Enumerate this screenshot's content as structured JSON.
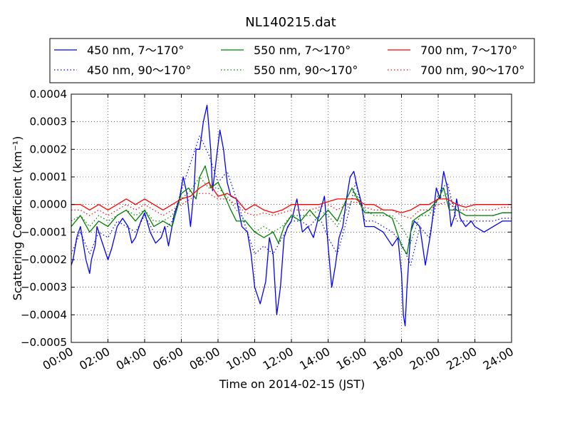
{
  "chart_data": {
    "type": "line",
    "title": "NL140215.dat",
    "xlabel": "Time on 2014-02-15 (JST)",
    "ylabel": "Scattering Coefficient (km⁻¹)",
    "xlim": [
      0,
      24
    ],
    "ylim": [
      -0.0005,
      0.0004
    ],
    "x_tick_labels": [
      "00:00",
      "02:00",
      "04:00",
      "06:00",
      "08:00",
      "10:00",
      "12:00",
      "14:00",
      "16:00",
      "18:00",
      "20:00",
      "22:00",
      "24:00"
    ],
    "y_tick_labels": [
      "−0.0005",
      "−0.0004",
      "−0.0003",
      "−0.0002",
      "−0.0001",
      "0.0000",
      "0.0001",
      "0.0002",
      "0.0003",
      "0.0004"
    ],
    "grid": true,
    "legend": "top, 3 columns",
    "x_unit": "hours",
    "series": [
      {
        "name": "450 nm, 7～170°",
        "color": "#0000ff",
        "style": "solid",
        "x": [
          0,
          0.1,
          0.3,
          0.5,
          0.6,
          0.8,
          1.0,
          1.1,
          1.3,
          1.4,
          1.6,
          1.8,
          2.0,
          2.2,
          2.5,
          2.8,
          3.1,
          3.3,
          3.5,
          3.8,
          4.0,
          4.3,
          4.6,
          4.9,
          5.1,
          5.3,
          5.6,
          5.9,
          6.1,
          6.3,
          6.5,
          6.7,
          6.8,
          7.0,
          7.2,
          7.4,
          7.6,
          7.7,
          7.9,
          8.1,
          8.3,
          8.5,
          8.7,
          9.0,
          9.3,
          9.6,
          9.8,
          10.0,
          10.3,
          10.6,
          10.8,
          11.0,
          11.2,
          11.4,
          11.6,
          11.8,
          12.0,
          12.3,
          12.6,
          12.9,
          13.2,
          13.5,
          13.8,
          14.0,
          14.2,
          14.4,
          14.6,
          14.8,
          15.0,
          15.2,
          15.4,
          15.6,
          15.8,
          16.0,
          16.5,
          17.0,
          17.5,
          17.8,
          18.0,
          18.1,
          18.2,
          18.3,
          18.5,
          18.7,
          19.0,
          19.3,
          19.6,
          19.9,
          20.1,
          20.3,
          20.5,
          20.7,
          20.9,
          21.0,
          21.2,
          21.5,
          21.8,
          22.0,
          22.5,
          23.0,
          23.5,
          24.0
        ],
        "y": [
          -0.00022,
          -0.0002,
          -0.00012,
          -8e-05,
          -0.00012,
          -0.0002,
          -0.00025,
          -0.0002,
          -0.00015,
          -8e-05,
          -0.00012,
          -0.00016,
          -0.0002,
          -0.00016,
          -8e-05,
          -5e-05,
          -8e-05,
          -0.00014,
          -0.00012,
          -6e-05,
          -3e-05,
          -0.0001,
          -0.00014,
          -0.00012,
          -8e-05,
          -0.00015,
          -4e-05,
          2e-05,
          0.0001,
          4e-05,
          -8e-05,
          6e-05,
          0.0002,
          0.0002,
          0.0003,
          0.00036,
          0.0002,
          5e-05,
          0.00016,
          0.00027,
          0.0002,
          8e-05,
          3e-05,
          2e-05,
          -8e-05,
          -0.0001,
          -0.00018,
          -0.0003,
          -0.00036,
          -0.00028,
          -0.00012,
          -0.00018,
          -0.0004,
          -0.0003,
          -0.00012,
          -8e-05,
          -6e-05,
          2e-05,
          -0.0001,
          -8e-05,
          -0.00012,
          -4e-05,
          3e-05,
          -0.00015,
          -0.0003,
          -0.00022,
          -0.00012,
          -8e-05,
          2e-05,
          0.0001,
          0.00012,
          6e-05,
          1e-05,
          -8e-05,
          -8e-05,
          -0.0001,
          -0.00015,
          -0.00012,
          -0.00025,
          -0.0004,
          -0.00044,
          -0.0003,
          -0.0001,
          -6e-05,
          -8e-05,
          -0.00022,
          -0.0001,
          6e-05,
          2e-05,
          0.00012,
          6e-05,
          -8e-05,
          -4e-05,
          2e-05,
          -5e-05,
          -8e-05,
          -6e-05,
          -8e-05,
          -0.0001,
          -8e-05,
          -6e-05,
          -6e-05
        ]
      },
      {
        "name": "550 nm, 7～170°",
        "color": "#008000",
        "style": "solid",
        "x": [
          0,
          0.5,
          1.0,
          1.5,
          2.0,
          2.5,
          3.0,
          3.5,
          4.0,
          4.5,
          5.0,
          5.5,
          6.0,
          6.4,
          6.8,
          7.0,
          7.3,
          7.6,
          8.0,
          8.3,
          8.7,
          9.0,
          9.5,
          10.0,
          10.5,
          11.0,
          11.3,
          11.6,
          12.0,
          12.5,
          13.0,
          13.5,
          14.0,
          14.5,
          15.0,
          15.3,
          15.6,
          16.0,
          16.5,
          17.0,
          17.5,
          18.0,
          18.3,
          18.6,
          19.0,
          19.5,
          20.0,
          20.3,
          20.6,
          21.0,
          21.5,
          22.0,
          22.5,
          23.0,
          23.5,
          24.0
        ],
        "y": [
          -8e-05,
          -4e-05,
          -0.0001,
          -6e-05,
          -8e-05,
          -4e-05,
          -2e-05,
          -6e-05,
          -2e-05,
          -8e-05,
          -6e-05,
          -8e-05,
          4e-05,
          6e-05,
          2e-05,
          0.0001,
          0.00014,
          6e-05,
          8e-05,
          4e-05,
          -2e-05,
          -6e-05,
          -6e-05,
          -0.0001,
          -0.00012,
          -0.0001,
          -0.00014,
          -8e-05,
          -4e-05,
          -6e-05,
          -2e-05,
          -6e-05,
          -2e-05,
          -6e-05,
          2e-05,
          6e-05,
          2e-05,
          -3e-05,
          -3e-05,
          -3e-05,
          -5e-05,
          -0.00015,
          -0.00018,
          -6e-05,
          -4e-05,
          -2e-05,
          2e-05,
          6e-05,
          -2e-05,
          -2e-05,
          -4e-05,
          -4e-05,
          -4e-05,
          -4e-05,
          -3e-05,
          -3e-05
        ]
      },
      {
        "name": "700 nm, 7～170°",
        "color": "#ff0000",
        "style": "solid",
        "x": [
          0,
          0.5,
          1.0,
          1.5,
          2.0,
          2.5,
          3.0,
          3.5,
          4.0,
          4.5,
          5.0,
          5.5,
          6.0,
          6.5,
          7.0,
          7.5,
          8.0,
          8.5,
          9.0,
          9.5,
          10.0,
          10.5,
          11.0,
          11.5,
          12.0,
          12.5,
          13.0,
          13.5,
          14.0,
          14.5,
          15.0,
          15.5,
          16.0,
          16.5,
          17.0,
          17.5,
          18.0,
          18.5,
          19.0,
          19.5,
          20.0,
          20.5,
          21.0,
          21.5,
          22.0,
          22.5,
          23.0,
          23.5,
          24.0
        ],
        "y": [
          0,
          0,
          -2e-05,
          0,
          -2e-05,
          0,
          2e-05,
          0,
          2e-05,
          0,
          -2e-05,
          0,
          2e-05,
          3e-05,
          6e-05,
          8e-05,
          3e-05,
          4e-05,
          2e-05,
          -2e-05,
          0,
          -2e-05,
          -3e-05,
          -2e-05,
          0,
          0,
          0,
          0,
          1e-05,
          2e-05,
          2e-05,
          2e-05,
          0,
          0,
          -2e-05,
          -2e-05,
          -3e-05,
          -2e-05,
          0,
          0,
          2e-05,
          2e-05,
          0,
          -1e-05,
          0,
          0,
          0,
          0,
          0
        ]
      },
      {
        "name": "450 nm, 90～170°",
        "color": "#0000ff",
        "style": "dotted",
        "x": [
          0,
          0.5,
          1.0,
          1.5,
          2.0,
          2.5,
          3.0,
          3.5,
          4.0,
          4.5,
          5.0,
          5.5,
          6.0,
          6.5,
          7.0,
          7.5,
          8.0,
          8.5,
          9.0,
          9.5,
          10.0,
          10.5,
          11.0,
          11.5,
          12.0,
          12.5,
          13.0,
          13.5,
          14.0,
          14.5,
          15.0,
          15.5,
          16.0,
          16.5,
          17.0,
          17.5,
          18.0,
          18.5,
          19.0,
          19.5,
          20.0,
          20.5,
          21.0,
          21.5,
          22.0,
          22.5,
          23.0,
          23.5,
          24.0
        ],
        "y": [
          -0.00018,
          -0.0001,
          -0.00018,
          -0.0001,
          -0.00012,
          -6e-05,
          -8e-05,
          -0.0001,
          -4e-05,
          -0.0001,
          -0.0001,
          -6e-05,
          5e-05,
          0.00015,
          0.00025,
          0.00018,
          8e-05,
          0.00012,
          2e-05,
          -8e-05,
          -0.00018,
          -0.00015,
          -0.00018,
          -0.00012,
          -6e-05,
          -6e-05,
          -8e-05,
          -4e-05,
          -0.00012,
          -0.00018,
          -6e-05,
          8e-05,
          -6e-05,
          -6e-05,
          -8e-05,
          -0.0001,
          -0.00014,
          -0.00022,
          -8e-05,
          -0.00012,
          4e-05,
          8e-05,
          -6e-05,
          -6e-05,
          -6e-05,
          -6e-05,
          -6e-05,
          -5e-05,
          -5e-05
        ]
      },
      {
        "name": "550 nm, 90～170°",
        "color": "#008000",
        "style": "dotted",
        "x": [
          0,
          0.5,
          1.0,
          1.5,
          2.0,
          2.5,
          3.0,
          3.5,
          4.0,
          4.5,
          5.0,
          5.5,
          6.0,
          6.5,
          7.0,
          7.5,
          8.0,
          8.5,
          9.0,
          9.5,
          10.0,
          10.5,
          11.0,
          11.5,
          12.0,
          12.5,
          13.0,
          13.5,
          14.0,
          14.5,
          15.0,
          15.5,
          16.0,
          16.5,
          17.0,
          17.5,
          18.0,
          18.5,
          19.0,
          19.5,
          20.0,
          20.5,
          21.0,
          21.5,
          22.0,
          22.5,
          23.0,
          23.5,
          24.0
        ],
        "y": [
          -6e-05,
          -4e-05,
          -8e-05,
          -4e-05,
          -6e-05,
          -4e-05,
          -2e-05,
          -4e-05,
          -2e-05,
          -6e-05,
          -6e-05,
          -4e-05,
          2e-05,
          5e-05,
          0.0001,
          6e-05,
          6e-05,
          3e-05,
          -2e-05,
          -6e-05,
          -0.0001,
          -8e-05,
          -0.0001,
          -8e-05,
          -4e-05,
          -4e-05,
          -4e-05,
          -2e-05,
          -4e-05,
          -8e-05,
          -2e-05,
          4e-05,
          -2e-05,
          -4e-05,
          -4e-05,
          -4e-05,
          -8e-05,
          -0.00014,
          -4e-05,
          -4e-05,
          2e-05,
          4e-05,
          -2e-05,
          -4e-05,
          -4e-05,
          -4e-05,
          -4e-05,
          -3e-05,
          -3e-05
        ]
      },
      {
        "name": "700 nm, 90～170°",
        "color": "#ff0000",
        "style": "dotted",
        "x": [
          0,
          0.5,
          1.0,
          1.5,
          2.0,
          2.5,
          3.0,
          3.5,
          4.0,
          4.5,
          5.0,
          5.5,
          6.0,
          6.5,
          7.0,
          7.5,
          8.0,
          8.5,
          9.0,
          9.5,
          10.0,
          10.5,
          11.0,
          11.5,
          12.0,
          12.5,
          13.0,
          13.5,
          14.0,
          14.5,
          15.0,
          15.5,
          16.0,
          16.5,
          17.0,
          17.5,
          18.0,
          18.5,
          19.0,
          19.5,
          20.0,
          20.5,
          21.0,
          21.5,
          22.0,
          22.5,
          23.0,
          23.5,
          24.0
        ],
        "y": [
          -2e-05,
          -2e-05,
          -4e-05,
          -2e-05,
          -4e-05,
          -2e-05,
          0,
          -2e-05,
          0,
          -2e-05,
          -4e-05,
          -2e-05,
          0,
          2e-05,
          4e-05,
          4e-05,
          2e-05,
          2e-05,
          0,
          -3e-05,
          -4e-05,
          -3e-05,
          -4e-05,
          -3e-05,
          -2e-05,
          -2e-05,
          -2e-05,
          -1e-05,
          0,
          -2e-05,
          0,
          1e-05,
          -1e-05,
          -2e-05,
          -2e-05,
          -2e-05,
          -4e-05,
          -5e-05,
          -2e-05,
          -2e-05,
          0,
          1e-05,
          -2e-05,
          -2e-05,
          -2e-05,
          -2e-05,
          -2e-05,
          -1e-05,
          -1e-05
        ]
      }
    ]
  }
}
